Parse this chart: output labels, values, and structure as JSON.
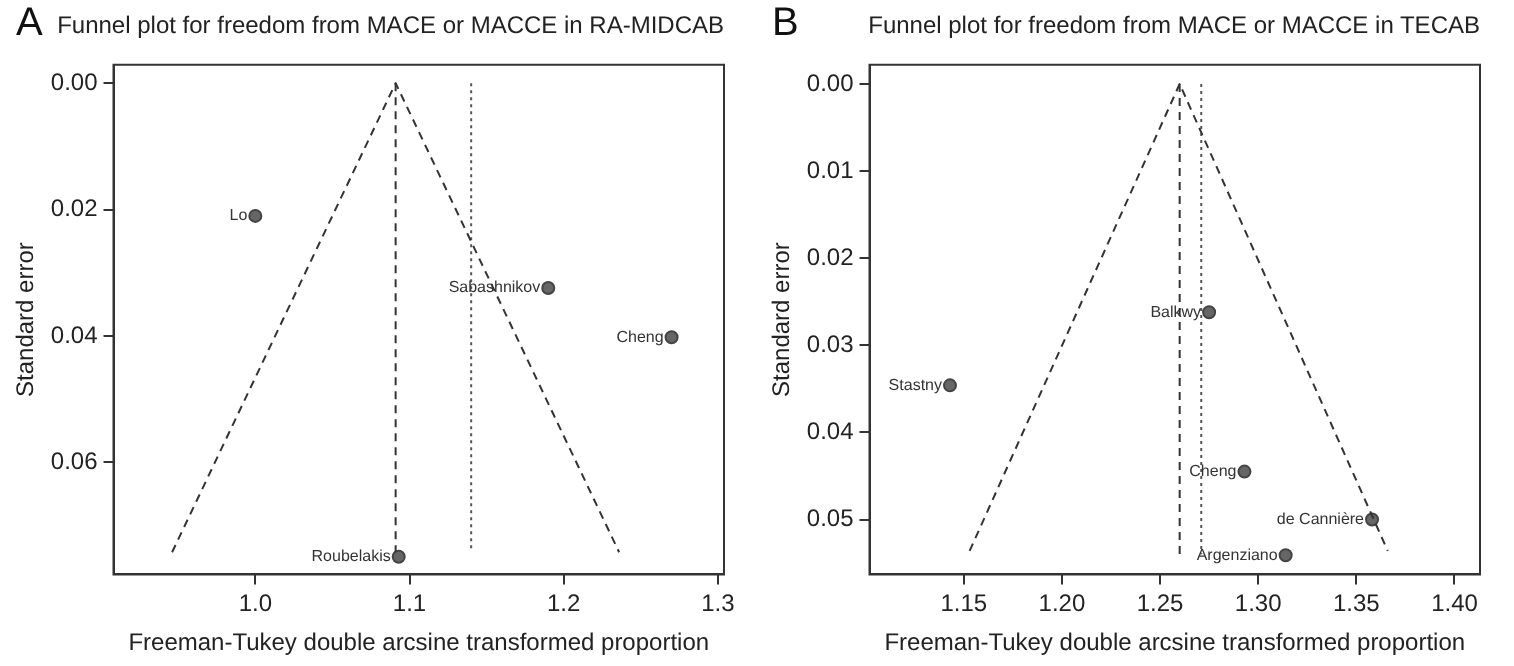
{
  "chart_data": [
    {
      "type": "scatter",
      "title": "Funnel plot for freedom from MACE or MACCE in RA-MIDCAB",
      "xlabel": "Freeman-Tukey double arcsine transformed proportion",
      "ylabel": "Standard error",
      "xlim": [
        0.908,
        1.304
      ],
      "xticks": [
        {
          "value": 1.0,
          "label": "1.0"
        },
        1.1,
        1.2,
        1.3
      ],
      "ylim": [
        0.0777,
        -0.0029
      ],
      "yticks": [
        {
          "value": 0,
          "label": "0.00"
        },
        0.02,
        0.04,
        0.06
      ],
      "series": [
        {
          "type": "line",
          "color": "#333333",
          "line_style": "dashed",
          "marker": "none",
          "x": [
            0.946,
            1.091,
            1.236
          ],
          "values": [
            0.0742,
            0,
            0.0742
          ]
        },
        {
          "type": "line",
          "color": "#333333",
          "line_style": "dashed",
          "marker": "none",
          "x": [
            1.091,
            1.091
          ],
          "values": [
            0,
            0.0742
          ]
        },
        {
          "type": "line",
          "color": "#555555",
          "line_style": "dotted",
          "marker": "none",
          "x": [
            1.14,
            1.14
          ],
          "values": [
            0,
            0.0742
          ]
        },
        {
          "type": "scatter",
          "color": "#666666",
          "marker": "circle",
          "x": [
            1.0,
            1.19,
            1.27,
            1.093
          ],
          "values": [
            0.021,
            0.0324,
            0.0402,
            0.0749
          ]
        }
      ],
      "annotations": [
        "A",
        {
          "text": "Lo",
          "x": 1.0,
          "y": 0.021
        },
        {
          "text": "Sabashnikov",
          "x": 1.19,
          "y": 0.0324
        },
        {
          "text": "Cheng",
          "x": 1.27,
          "y": 0.0402
        },
        {
          "text": "Roubelakis",
          "x": 1.093,
          "y": 0.0749
        }
      ]
    },
    {
      "type": "scatter",
      "title": "Funnel plot for freedom from MACE or MACCE in TECAB",
      "xlabel": "Freeman-Tukey double arcsine transformed proportion",
      "ylabel": "Standard error",
      "xlim": [
        1.102,
        1.413
      ],
      "xticks": [
        {
          "value": 1.15,
          "label": "1.15"
        },
        {
          "value": 1.2,
          "label": "1.20"
        },
        {
          "value": 1.25,
          "label": "1.25"
        },
        {
          "value": 1.3,
          "label": "1.30"
        },
        {
          "value": 1.35,
          "label": "1.35"
        },
        {
          "value": 1.4,
          "label": "1.40"
        }
      ],
      "ylim": [
        0.0563,
        -0.0022
      ],
      "yticks": [
        {
          "value": 0,
          "label": "0.00"
        },
        0.01,
        0.02,
        0.03,
        0.04,
        0.05
      ],
      "series": [
        {
          "type": "line",
          "color": "#333333",
          "line_style": "dashed",
          "marker": "none",
          "x": [
            1.153,
            1.26,
            1.366
          ],
          "values": [
            0.0536,
            0,
            0.0536
          ]
        },
        {
          "type": "line",
          "color": "#333333",
          "line_style": "dashed",
          "marker": "none",
          "x": [
            1.26,
            1.26
          ],
          "values": [
            0,
            0.054
          ]
        },
        {
          "type": "line",
          "color": "#555555",
          "line_style": "dotted",
          "marker": "none",
          "x": [
            1.271,
            1.271
          ],
          "values": [
            0,
            0.054
          ]
        },
        {
          "type": "scatter",
          "color": "#666666",
          "marker": "circle",
          "x": [
            1.275,
            1.143,
            1.293,
            1.358,
            1.314
          ],
          "values": [
            0.0262,
            0.0346,
            0.0445,
            0.05,
            0.0541
          ]
        }
      ],
      "annotations": [
        "B",
        {
          "text": "Balkwy",
          "x": 1.275,
          "y": 0.0262
        },
        {
          "text": "Stastny",
          "x": 1.143,
          "y": 0.0346
        },
        {
          "text": "Cheng",
          "x": 1.293,
          "y": 0.0445
        },
        {
          "text": "de Cannière",
          "x": 1.358,
          "y": 0.05
        },
        {
          "text": "Argenziano",
          "x": 1.314,
          "y": 0.0541
        }
      ]
    }
  ]
}
